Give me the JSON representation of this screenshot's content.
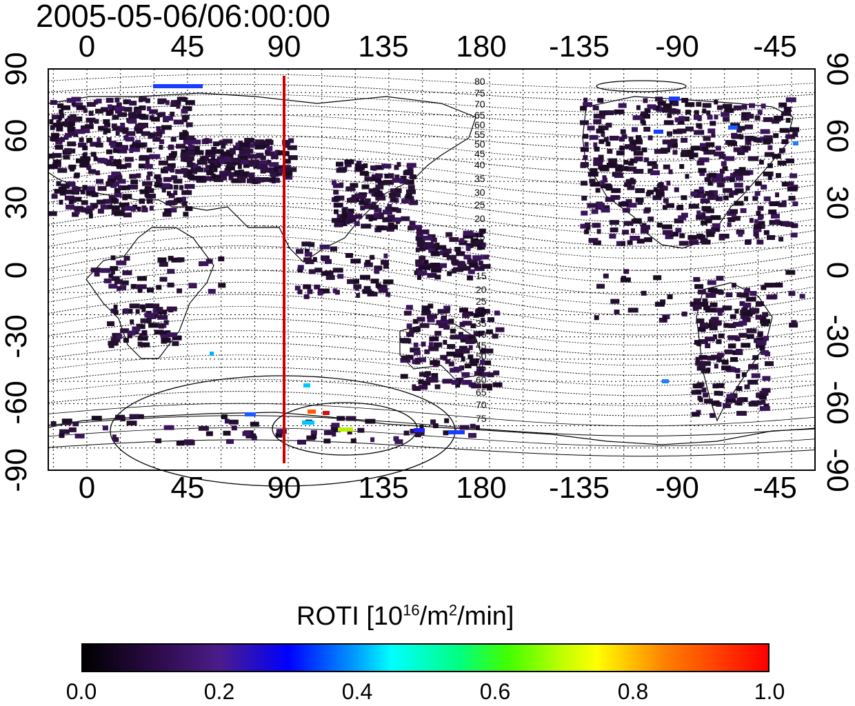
{
  "timestamp": "2005-05-06/06:00:00",
  "map": {
    "lon_ticks": [
      "0",
      "45",
      "90",
      "135",
      "180",
      "-135",
      "-90",
      "-45"
    ],
    "lat_ticks_left": [
      "90",
      "60",
      "30",
      "0",
      "-30",
      "-60",
      "-90"
    ],
    "lat_ticks_right": [
      "90",
      "60",
      "30",
      "0",
      "-30",
      "-60",
      "-90"
    ],
    "contour_labels_north": [
      "80",
      "75",
      "70",
      "65",
      "60",
      "55",
      "50",
      "45",
      "40",
      "35",
      "30",
      "25",
      "20",
      "15"
    ],
    "contour_labels_south": [
      "15",
      "20",
      "25",
      "30",
      "35",
      "40",
      "45",
      "50",
      "55",
      "60",
      "65",
      "70",
      "75"
    ],
    "meridian_line": {
      "longitude": 90,
      "color": "#cc0000"
    },
    "plot_range": {
      "lon": [
        -20,
        338
      ],
      "lat": [
        -90,
        90
      ]
    }
  },
  "colorbar": {
    "title": "ROTI  [10",
    "title_sup1": "16",
    "title_mid": "/m",
    "title_sup2": "2",
    "title_end": "/min]",
    "ticks": [
      "0.0",
      "0.2",
      "0.4",
      "0.6",
      "0.8",
      "1.0"
    ],
    "range": [
      0.0,
      1.0
    ]
  }
}
